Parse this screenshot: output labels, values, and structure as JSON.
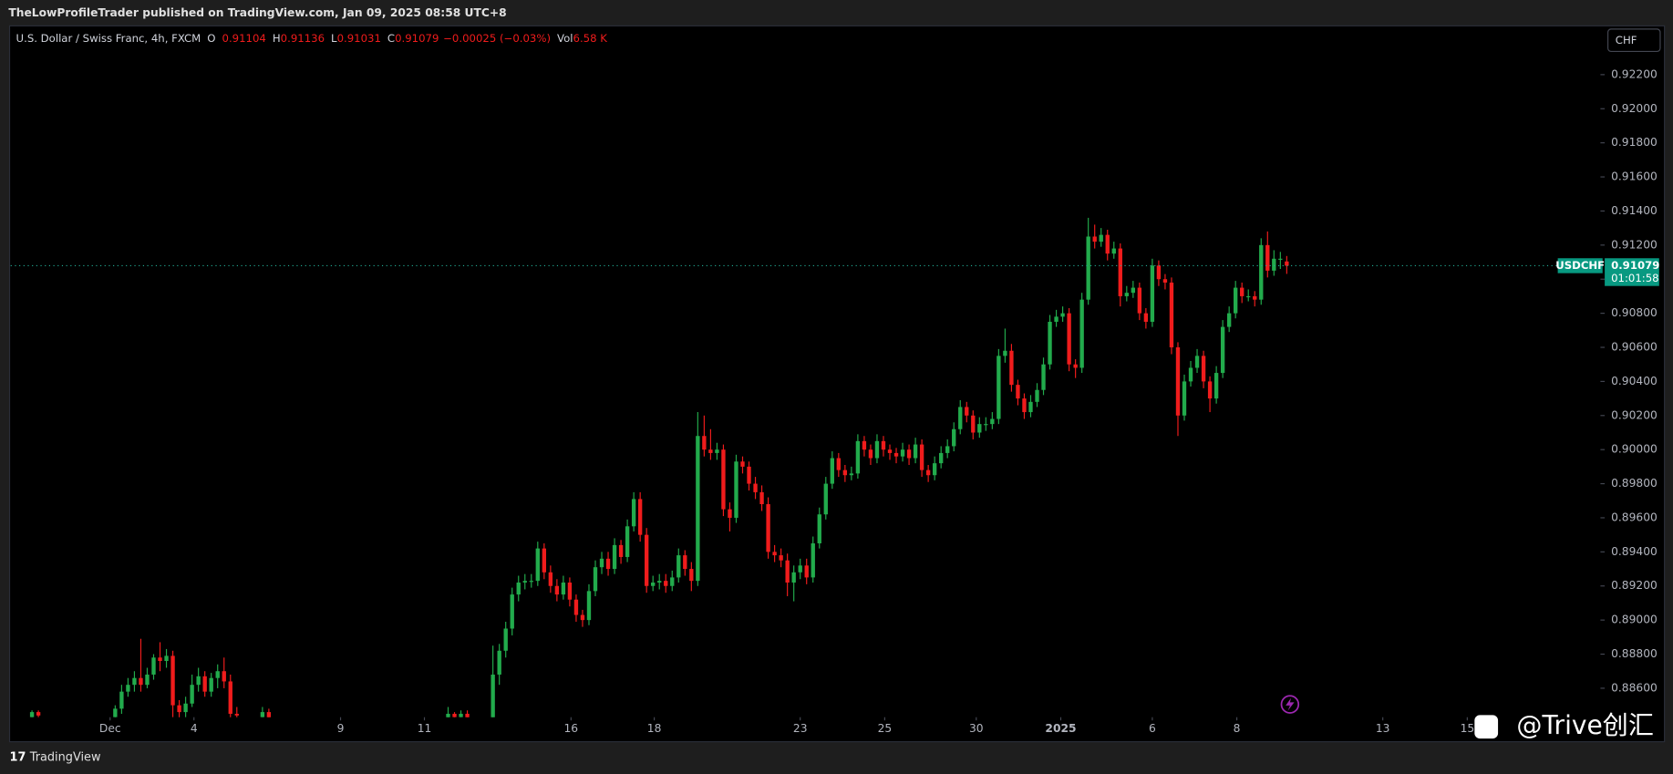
{
  "chart_data": {
    "type": "candlestick",
    "header": "TheLowProfileTrader published on TradingView.com, Jan 09, 2025 08:58 UTC+8",
    "title": "U.S. Dollar / Swiss Franc, 4h, FXCM",
    "legend": {
      "o_label": "O",
      "o": "0.91104",
      "h_label": "H",
      "h": "0.91136",
      "l_label": "L",
      "l": "0.91031",
      "c_label": "C",
      "c": "0.91079",
      "change": "−0.00025 (−0.03%)",
      "vol_label": "Vol",
      "vol": "6.58 K"
    },
    "currency": "CHF",
    "symbol": "USDCHF",
    "last_price": {
      "value": 0.91079,
      "label": "0.91079"
    },
    "countdown": "01:01:58",
    "watermark": "@Trive创汇",
    "footer": "TradingView",
    "up_color": "#22ab4c",
    "down_color": "#f01c1c",
    "xlim": [
      -0.33,
      248
    ],
    "ylim": [
      0.8843,
      0.9248
    ],
    "yticks": [
      {
        "value": 0.886,
        "label": "0.88600"
      },
      {
        "value": 0.888,
        "label": "0.88800"
      },
      {
        "value": 0.89,
        "label": "0.89000"
      },
      {
        "value": 0.892,
        "label": "0.89200"
      },
      {
        "value": 0.894,
        "label": "0.89400"
      },
      {
        "value": 0.896,
        "label": "0.89600"
      },
      {
        "value": 0.898,
        "label": "0.89800"
      },
      {
        "value": 0.9,
        "label": "0.90000"
      },
      {
        "value": 0.902,
        "label": "0.90200"
      },
      {
        "value": 0.904,
        "label": "0.90400"
      },
      {
        "value": 0.906,
        "label": "0.90600"
      },
      {
        "value": 0.908,
        "label": "0.90800"
      },
      {
        "value": 0.91,
        "label": "0.91000"
      },
      {
        "value": 0.912,
        "label": "0.91200"
      },
      {
        "value": 0.914,
        "label": "0.91400"
      },
      {
        "value": 0.916,
        "label": "0.91600"
      },
      {
        "value": 0.918,
        "label": "0.91800"
      },
      {
        "value": 0.92,
        "label": "0.92000"
      },
      {
        "value": 0.922,
        "label": "0.92200"
      }
    ],
    "xticks": [
      {
        "value": 15.2,
        "label": "Dec"
      },
      {
        "value": 28.3,
        "label": "4"
      },
      {
        "value": 51.2,
        "label": "9"
      },
      {
        "value": 64.3,
        "label": "11"
      },
      {
        "value": 87.2,
        "label": "16"
      },
      {
        "value": 100.2,
        "label": "18"
      },
      {
        "value": 123,
        "label": "23"
      },
      {
        "value": 136.2,
        "label": "25"
      },
      {
        "value": 150.5,
        "label": "30"
      },
      {
        "value": 163.7,
        "label": "2025"
      },
      {
        "value": 178,
        "label": "6"
      },
      {
        "value": 191.2,
        "label": "8"
      },
      {
        "value": 214,
        "label": "13"
      },
      {
        "value": 227.2,
        "label": "15"
      }
    ],
    "candles": [
      [
        3,
        0.8843,
        0.8847,
        0.8842,
        0.8846
      ],
      [
        4,
        0.8846,
        0.8847,
        0.8843,
        0.8844
      ],
      [
        16,
        0.8843,
        0.885,
        0.884,
        0.8848
      ],
      [
        17,
        0.8848,
        0.8862,
        0.8845,
        0.8858
      ],
      [
        18,
        0.8858,
        0.8866,
        0.8855,
        0.8862
      ],
      [
        19,
        0.8862,
        0.887,
        0.8858,
        0.8866
      ],
      [
        20,
        0.8866,
        0.8889,
        0.8858,
        0.8862
      ],
      [
        21,
        0.8862,
        0.8872,
        0.886,
        0.8868
      ],
      [
        22,
        0.8868,
        0.888,
        0.8865,
        0.8878
      ],
      [
        23,
        0.8878,
        0.8887,
        0.887,
        0.8876
      ],
      [
        24,
        0.8876,
        0.8883,
        0.8872,
        0.8879
      ],
      [
        25,
        0.8879,
        0.8882,
        0.8843,
        0.885
      ],
      [
        26,
        0.885,
        0.8853,
        0.8842,
        0.8846
      ],
      [
        27,
        0.8846,
        0.8855,
        0.8843,
        0.8851
      ],
      [
        28,
        0.8851,
        0.8868,
        0.8849,
        0.8862
      ],
      [
        29,
        0.8862,
        0.8872,
        0.8858,
        0.8867
      ],
      [
        30,
        0.8867,
        0.887,
        0.8855,
        0.8858
      ],
      [
        31,
        0.8858,
        0.8869,
        0.8855,
        0.8866
      ],
      [
        32,
        0.8866,
        0.8874,
        0.886,
        0.887
      ],
      [
        33,
        0.887,
        0.8878,
        0.886,
        0.8864
      ],
      [
        34,
        0.8864,
        0.8868,
        0.884,
        0.8845
      ],
      [
        35,
        0.8845,
        0.8849,
        0.884,
        0.8844
      ],
      [
        39,
        0.8843,
        0.8849,
        0.8841,
        0.8846
      ],
      [
        40,
        0.8846,
        0.8848,
        0.884,
        0.8842
      ],
      [
        68,
        0.8842,
        0.8849,
        0.884,
        0.8845
      ],
      [
        69,
        0.8845,
        0.8846,
        0.8842,
        0.8843
      ],
      [
        70,
        0.8843,
        0.8847,
        0.884,
        0.8845
      ],
      [
        71,
        0.8845,
        0.8847,
        0.884,
        0.8842
      ],
      [
        75,
        0.8842,
        0.8885,
        0.884,
        0.8868
      ],
      [
        76,
        0.8868,
        0.8886,
        0.8862,
        0.8882
      ],
      [
        77,
        0.8882,
        0.8899,
        0.8878,
        0.8895
      ],
      [
        78,
        0.8895,
        0.8919,
        0.8891,
        0.8915
      ],
      [
        79,
        0.8915,
        0.8926,
        0.8911,
        0.8922
      ],
      [
        80,
        0.8922,
        0.8927,
        0.8918,
        0.8923
      ],
      [
        81,
        0.8923,
        0.8927,
        0.8919,
        0.8923
      ],
      [
        82,
        0.8923,
        0.8946,
        0.892,
        0.8942
      ],
      [
        83,
        0.8942,
        0.8945,
        0.8924,
        0.8928
      ],
      [
        84,
        0.8928,
        0.8932,
        0.8916,
        0.892
      ],
      [
        85,
        0.892,
        0.8924,
        0.8911,
        0.8915
      ],
      [
        86,
        0.8915,
        0.8926,
        0.8912,
        0.8922
      ],
      [
        87,
        0.8922,
        0.8925,
        0.8908,
        0.8912
      ],
      [
        88,
        0.8912,
        0.8915,
        0.8899,
        0.8903
      ],
      [
        89,
        0.8903,
        0.8906,
        0.8896,
        0.89
      ],
      [
        90,
        0.89,
        0.8921,
        0.8897,
        0.8917
      ],
      [
        91,
        0.8917,
        0.8935,
        0.8914,
        0.8931
      ],
      [
        92,
        0.8931,
        0.894,
        0.8927,
        0.8936
      ],
      [
        93,
        0.8936,
        0.894,
        0.8926,
        0.893
      ],
      [
        94,
        0.893,
        0.8948,
        0.8927,
        0.8944
      ],
      [
        95,
        0.8944,
        0.8947,
        0.8933,
        0.8937
      ],
      [
        96,
        0.8937,
        0.8959,
        0.8934,
        0.8955
      ],
      [
        97,
        0.8955,
        0.8975,
        0.8952,
        0.8971
      ],
      [
        98,
        0.8971,
        0.8975,
        0.8946,
        0.895
      ],
      [
        99,
        0.895,
        0.8954,
        0.8916,
        0.892
      ],
      [
        100,
        0.892,
        0.8926,
        0.8917,
        0.8922
      ],
      [
        101,
        0.8922,
        0.8927,
        0.8918,
        0.8923
      ],
      [
        102,
        0.8923,
        0.8927,
        0.8916,
        0.892
      ],
      [
        103,
        0.892,
        0.8929,
        0.8917,
        0.8925
      ],
      [
        104,
        0.8925,
        0.8942,
        0.8922,
        0.8938
      ],
      [
        105,
        0.8938,
        0.8941,
        0.8926,
        0.893
      ],
      [
        106,
        0.893,
        0.8934,
        0.8917,
        0.8923
      ],
      [
        107,
        0.8923,
        0.9022,
        0.892,
        0.9008
      ],
      [
        108,
        0.9008,
        0.902,
        0.8996,
        0.9
      ],
      [
        109,
        0.9,
        0.9012,
        0.8994,
        0.8998
      ],
      [
        110,
        0.8998,
        0.9004,
        0.8994,
        0.9
      ],
      [
        111,
        0.9,
        0.9003,
        0.8961,
        0.8965
      ],
      [
        112,
        0.8965,
        0.8969,
        0.8952,
        0.896
      ],
      [
        113,
        0.896,
        0.8997,
        0.8957,
        0.8993
      ],
      [
        114,
        0.8993,
        0.8996,
        0.8986,
        0.899
      ],
      [
        115,
        0.899,
        0.8993,
        0.8976,
        0.898
      ],
      [
        116,
        0.898,
        0.8984,
        0.8971,
        0.8975
      ],
      [
        117,
        0.8975,
        0.8979,
        0.8964,
        0.8968
      ],
      [
        118,
        0.8968,
        0.8972,
        0.8936,
        0.894
      ],
      [
        119,
        0.894,
        0.8944,
        0.8934,
        0.8938
      ],
      [
        120,
        0.8938,
        0.8942,
        0.8931,
        0.8935
      ],
      [
        121,
        0.8935,
        0.8939,
        0.8914,
        0.8922
      ],
      [
        122,
        0.8922,
        0.8932,
        0.8911,
        0.8928
      ],
      [
        123,
        0.8928,
        0.8936,
        0.8924,
        0.8932
      ],
      [
        124,
        0.8932,
        0.8936,
        0.8921,
        0.8925
      ],
      [
        125,
        0.8925,
        0.8949,
        0.8922,
        0.8945
      ],
      [
        126,
        0.8945,
        0.8966,
        0.8942,
        0.8962
      ],
      [
        127,
        0.8962,
        0.8984,
        0.8959,
        0.898
      ],
      [
        128,
        0.898,
        0.8999,
        0.8977,
        0.8995
      ],
      [
        129,
        0.8995,
        0.8998,
        0.8984,
        0.8988
      ],
      [
        130,
        0.8988,
        0.8991,
        0.8981,
        0.8985
      ],
      [
        131,
        0.8985,
        0.899,
        0.8982,
        0.8986
      ],
      [
        132,
        0.8986,
        0.9009,
        0.8983,
        0.9005
      ],
      [
        133,
        0.9005,
        0.9008,
        0.8996,
        0.9
      ],
      [
        134,
        0.9,
        0.9003,
        0.8991,
        0.8995
      ],
      [
        135,
        0.8995,
        0.9009,
        0.8992,
        0.9005
      ],
      [
        136,
        0.9005,
        0.9008,
        0.8996,
        0.9
      ],
      [
        137,
        0.9,
        0.9003,
        0.8994,
        0.8998
      ],
      [
        138,
        0.8998,
        0.9001,
        0.8992,
        0.8996
      ],
      [
        139,
        0.8996,
        0.9004,
        0.8993,
        0.9
      ],
      [
        140,
        0.9,
        0.9003,
        0.8991,
        0.8995
      ],
      [
        141,
        0.8995,
        0.9007,
        0.8992,
        0.9003
      ],
      [
        142,
        0.9003,
        0.9006,
        0.8984,
        0.8988
      ],
      [
        143,
        0.8988,
        0.8991,
        0.8981,
        0.8985
      ],
      [
        144,
        0.8985,
        0.8996,
        0.8982,
        0.8992
      ],
      [
        145,
        0.8992,
        0.9002,
        0.8989,
        0.8998
      ],
      [
        146,
        0.8998,
        0.9006,
        0.8995,
        0.9002
      ],
      [
        147,
        0.9002,
        0.9016,
        0.8999,
        0.9012
      ],
      [
        148,
        0.9012,
        0.9029,
        0.9009,
        0.9025
      ],
      [
        149,
        0.9025,
        0.9028,
        0.9016,
        0.902
      ],
      [
        150,
        0.902,
        0.9023,
        0.9006,
        0.901
      ],
      [
        151,
        0.901,
        0.9019,
        0.9007,
        0.9015
      ],
      [
        152,
        0.9015,
        0.9019,
        0.9011,
        0.9015
      ],
      [
        153,
        0.9015,
        0.9022,
        0.9012,
        0.9018
      ],
      [
        154,
        0.9018,
        0.9059,
        0.9015,
        0.9055
      ],
      [
        155,
        0.9055,
        0.9071,
        0.9051,
        0.9058
      ],
      [
        156,
        0.9058,
        0.9062,
        0.9034,
        0.9038
      ],
      [
        157,
        0.9038,
        0.9041,
        0.9026,
        0.903
      ],
      [
        158,
        0.903,
        0.9033,
        0.9018,
        0.9022
      ],
      [
        159,
        0.9022,
        0.9032,
        0.9019,
        0.9028
      ],
      [
        160,
        0.9028,
        0.9039,
        0.9025,
        0.9035
      ],
      [
        161,
        0.9035,
        0.9054,
        0.9032,
        0.905
      ],
      [
        162,
        0.905,
        0.9079,
        0.9047,
        0.9075
      ],
      [
        163,
        0.9075,
        0.9082,
        0.9072,
        0.9078
      ],
      [
        164,
        0.9078,
        0.9084,
        0.9075,
        0.908
      ],
      [
        165,
        0.908,
        0.9083,
        0.9046,
        0.905
      ],
      [
        166,
        0.905,
        0.9053,
        0.9042,
        0.9048
      ],
      [
        167,
        0.9048,
        0.9092,
        0.9045,
        0.9088
      ],
      [
        168,
        0.9088,
        0.9136,
        0.9085,
        0.9125
      ],
      [
        169,
        0.9125,
        0.9132,
        0.9118,
        0.9122
      ],
      [
        170,
        0.9122,
        0.913,
        0.9119,
        0.9126
      ],
      [
        171,
        0.9126,
        0.9129,
        0.9111,
        0.9115
      ],
      [
        172,
        0.9115,
        0.9122,
        0.9112,
        0.9118
      ],
      [
        173,
        0.9118,
        0.9121,
        0.9084,
        0.909
      ],
      [
        174,
        0.909,
        0.9096,
        0.9087,
        0.9092
      ],
      [
        175,
        0.9092,
        0.9099,
        0.9089,
        0.9095
      ],
      [
        176,
        0.9095,
        0.9098,
        0.9076,
        0.908
      ],
      [
        177,
        0.908,
        0.9083,
        0.9071,
        0.9075
      ],
      [
        178,
        0.9075,
        0.9112,
        0.9072,
        0.9108
      ],
      [
        179,
        0.9108,
        0.9111,
        0.9096,
        0.91
      ],
      [
        180,
        0.91,
        0.9103,
        0.9094,
        0.9098
      ],
      [
        181,
        0.9098,
        0.9101,
        0.9056,
        0.906
      ],
      [
        182,
        0.906,
        0.9063,
        0.9008,
        0.902
      ],
      [
        183,
        0.902,
        0.9044,
        0.9017,
        0.904
      ],
      [
        184,
        0.904,
        0.9052,
        0.9037,
        0.9048
      ],
      [
        185,
        0.9048,
        0.9059,
        0.9045,
        0.9055
      ],
      [
        186,
        0.9055,
        0.9058,
        0.9036,
        0.904
      ],
      [
        187,
        0.904,
        0.9043,
        0.9022,
        0.903
      ],
      [
        188,
        0.903,
        0.9049,
        0.9027,
        0.9045
      ],
      [
        189,
        0.9045,
        0.9076,
        0.9042,
        0.9072
      ],
      [
        190,
        0.9072,
        0.9084,
        0.9069,
        0.908
      ],
      [
        191,
        0.908,
        0.9099,
        0.9077,
        0.9095
      ],
      [
        192,
        0.9095,
        0.9098,
        0.9086,
        0.909
      ],
      [
        193,
        0.909,
        0.9094,
        0.9087,
        0.909
      ],
      [
        194,
        0.909,
        0.9093,
        0.9084,
        0.9088
      ],
      [
        195,
        0.9088,
        0.9124,
        0.9085,
        0.912
      ],
      [
        196,
        0.912,
        0.9128,
        0.9101,
        0.9105
      ],
      [
        197,
        0.9105,
        0.9117,
        0.9102,
        0.9112
      ],
      [
        198,
        0.9112,
        0.9116,
        0.9106,
        0.9112
      ],
      [
        199,
        0.91104,
        0.91136,
        0.91031,
        0.91079
      ]
    ]
  }
}
